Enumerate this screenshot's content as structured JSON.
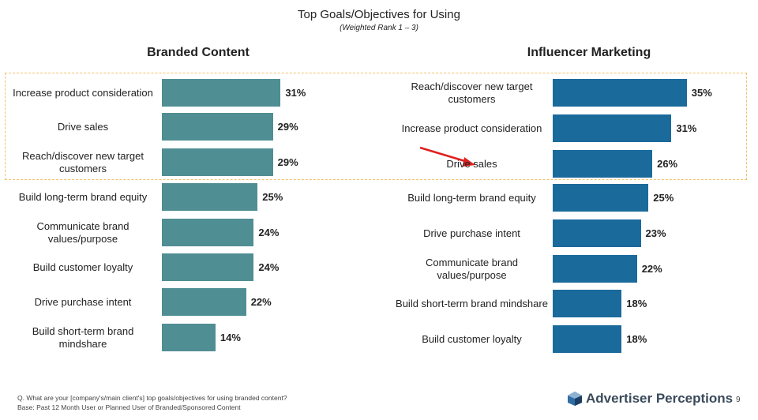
{
  "chart_data": [
    {
      "type": "bar",
      "orientation": "horizontal",
      "title": "Branded Content",
      "color": "#4f8e93",
      "categories": [
        "Increase product consideration",
        "Drive sales",
        "Reach/discover new target customers",
        "Build long-term brand equity",
        "Communicate brand values/purpose",
        "Build customer loyalty",
        "Drive purchase intent",
        "Build short-term brand mindshare"
      ],
      "values": [
        31,
        29,
        29,
        25,
        24,
        24,
        22,
        14
      ],
      "labels": [
        "31%",
        "29%",
        "29%",
        "25%",
        "24%",
        "24%",
        "22%",
        "14%"
      ]
    },
    {
      "type": "bar",
      "orientation": "horizontal",
      "title": "Influencer Marketing",
      "color": "#1b6a9c",
      "categories": [
        "Reach/discover new target customers",
        "Increase product consideration",
        "Drive sales",
        "Build long-term brand equity",
        "Drive purchase intent",
        "Communicate brand values/purpose",
        "Build short-term brand mindshare",
        "Build customer loyalty"
      ],
      "values": [
        35,
        31,
        26,
        25,
        23,
        22,
        18,
        18
      ],
      "labels": [
        "35%",
        "31%",
        "26%",
        "25%",
        "23%",
        "22%",
        "18%",
        "18%"
      ]
    }
  ],
  "header": {
    "title": "Top Goals/Objectives for Using",
    "subtitle": "(Weighted Rank 1 – 3)"
  },
  "highlight": {
    "color": "#f0c26a",
    "note": "top 3 highlighted",
    "arrow_color": "#e02020"
  },
  "footer": {
    "question": "Q. What are your [company's/main client's] top goals/objectives for using branded content?",
    "base": "Base: Past 12 Month User or Planned User of Branded/Sponsored Content",
    "logo": "Advertiser Perceptions",
    "page": "9"
  }
}
